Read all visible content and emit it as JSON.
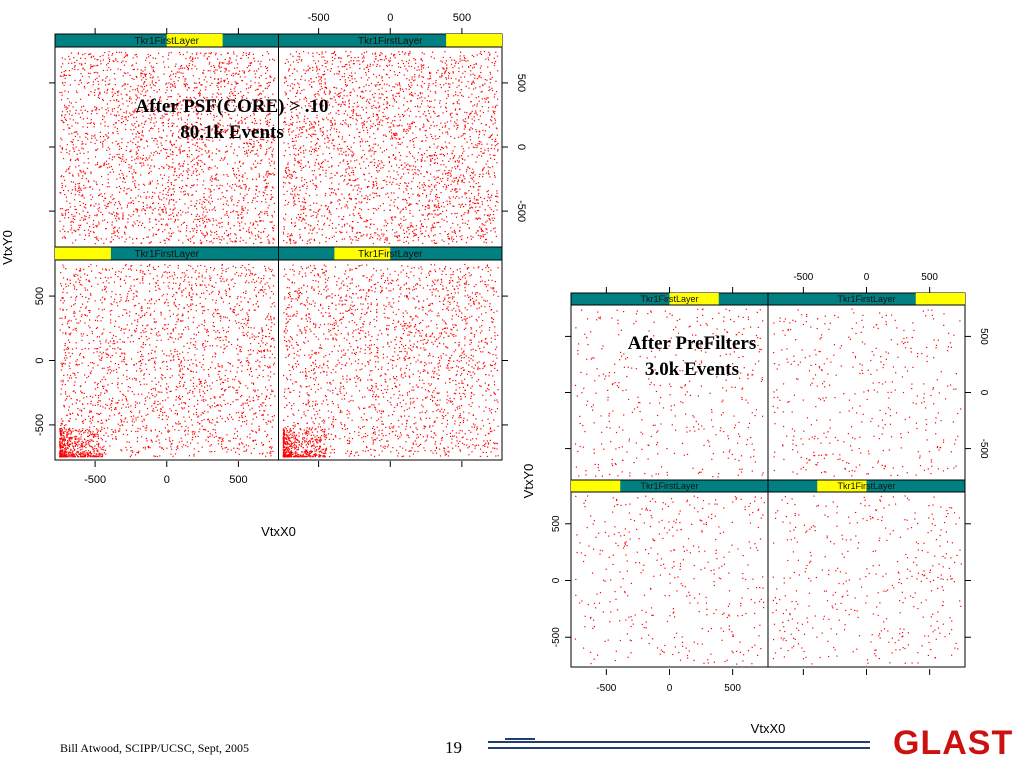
{
  "slide": {
    "footer_left": "Bill Atwood,  SCIPP/UCSC, Sept, 2005",
    "page_number": "19",
    "logo_text": "GLAST",
    "logo_color": "#cc1111",
    "line_color": "#1f3f73"
  },
  "colors": {
    "strip": "#008080",
    "strip_highlight": "#ffff00",
    "points": "#ff0000"
  },
  "chart_data": [
    {
      "type": "scatter",
      "title": "After PSF(CORE) > .10\n80.1k Events",
      "xlabel": "VtxX0",
      "ylabel": "VtxY0",
      "conditioning_variable": "Tkr1FirstLayer",
      "xlim": [
        -780,
        780
      ],
      "ylim": [
        -780,
        780
      ],
      "xticks": [
        -500,
        0,
        500
      ],
      "yticks": [
        -500,
        0,
        500
      ],
      "layout": "2x2 lattice",
      "panels": [
        {
          "position": "bottom-left",
          "strip_label": "Tkr1FirstLayer",
          "level_range": [
            0.0,
            0.25
          ]
        },
        {
          "position": "bottom-right",
          "strip_label": "Tkr1FirstLayer",
          "level_range": [
            0.25,
            0.5
          ]
        },
        {
          "position": "top-left",
          "strip_label": "Tkr1FirstLayer",
          "level_range": [
            0.5,
            0.75
          ]
        },
        {
          "position": "top-right",
          "strip_label": "Tkr1FirstLayer",
          "level_range": [
            0.75,
            1.0
          ]
        }
      ],
      "point_color": "#ff0000",
      "events": "80.1k",
      "x_range_observed": [
        -750,
        750
      ],
      "y_range_observed": [
        -750,
        750
      ]
    },
    {
      "type": "scatter",
      "title": "After PreFilters\n3.0k Events",
      "xlabel": "VtxX0",
      "ylabel": "VtxY0",
      "conditioning_variable": "Tkr1FirstLayer",
      "xlim": [
        -780,
        780
      ],
      "ylim": [
        -780,
        780
      ],
      "xticks": [
        -500,
        0,
        500
      ],
      "yticks": [
        -500,
        0,
        500
      ],
      "layout": "2x2 lattice",
      "panels": [
        {
          "position": "bottom-left",
          "strip_label": "Tkr1FirstLayer",
          "level_range": [
            0.0,
            0.25
          ]
        },
        {
          "position": "bottom-right",
          "strip_label": "Tkr1FirstLayer",
          "level_range": [
            0.25,
            0.5
          ]
        },
        {
          "position": "top-left",
          "strip_label": "Tkr1FirstLayer",
          "level_range": [
            0.5,
            0.75
          ]
        },
        {
          "position": "top-right",
          "strip_label": "Tkr1FirstLayer",
          "level_range": [
            0.75,
            1.0
          ]
        }
      ],
      "point_color": "#ff0000",
      "events": "3.0k",
      "x_range_observed": [
        -750,
        750
      ],
      "y_range_observed": [
        -750,
        750
      ]
    }
  ]
}
